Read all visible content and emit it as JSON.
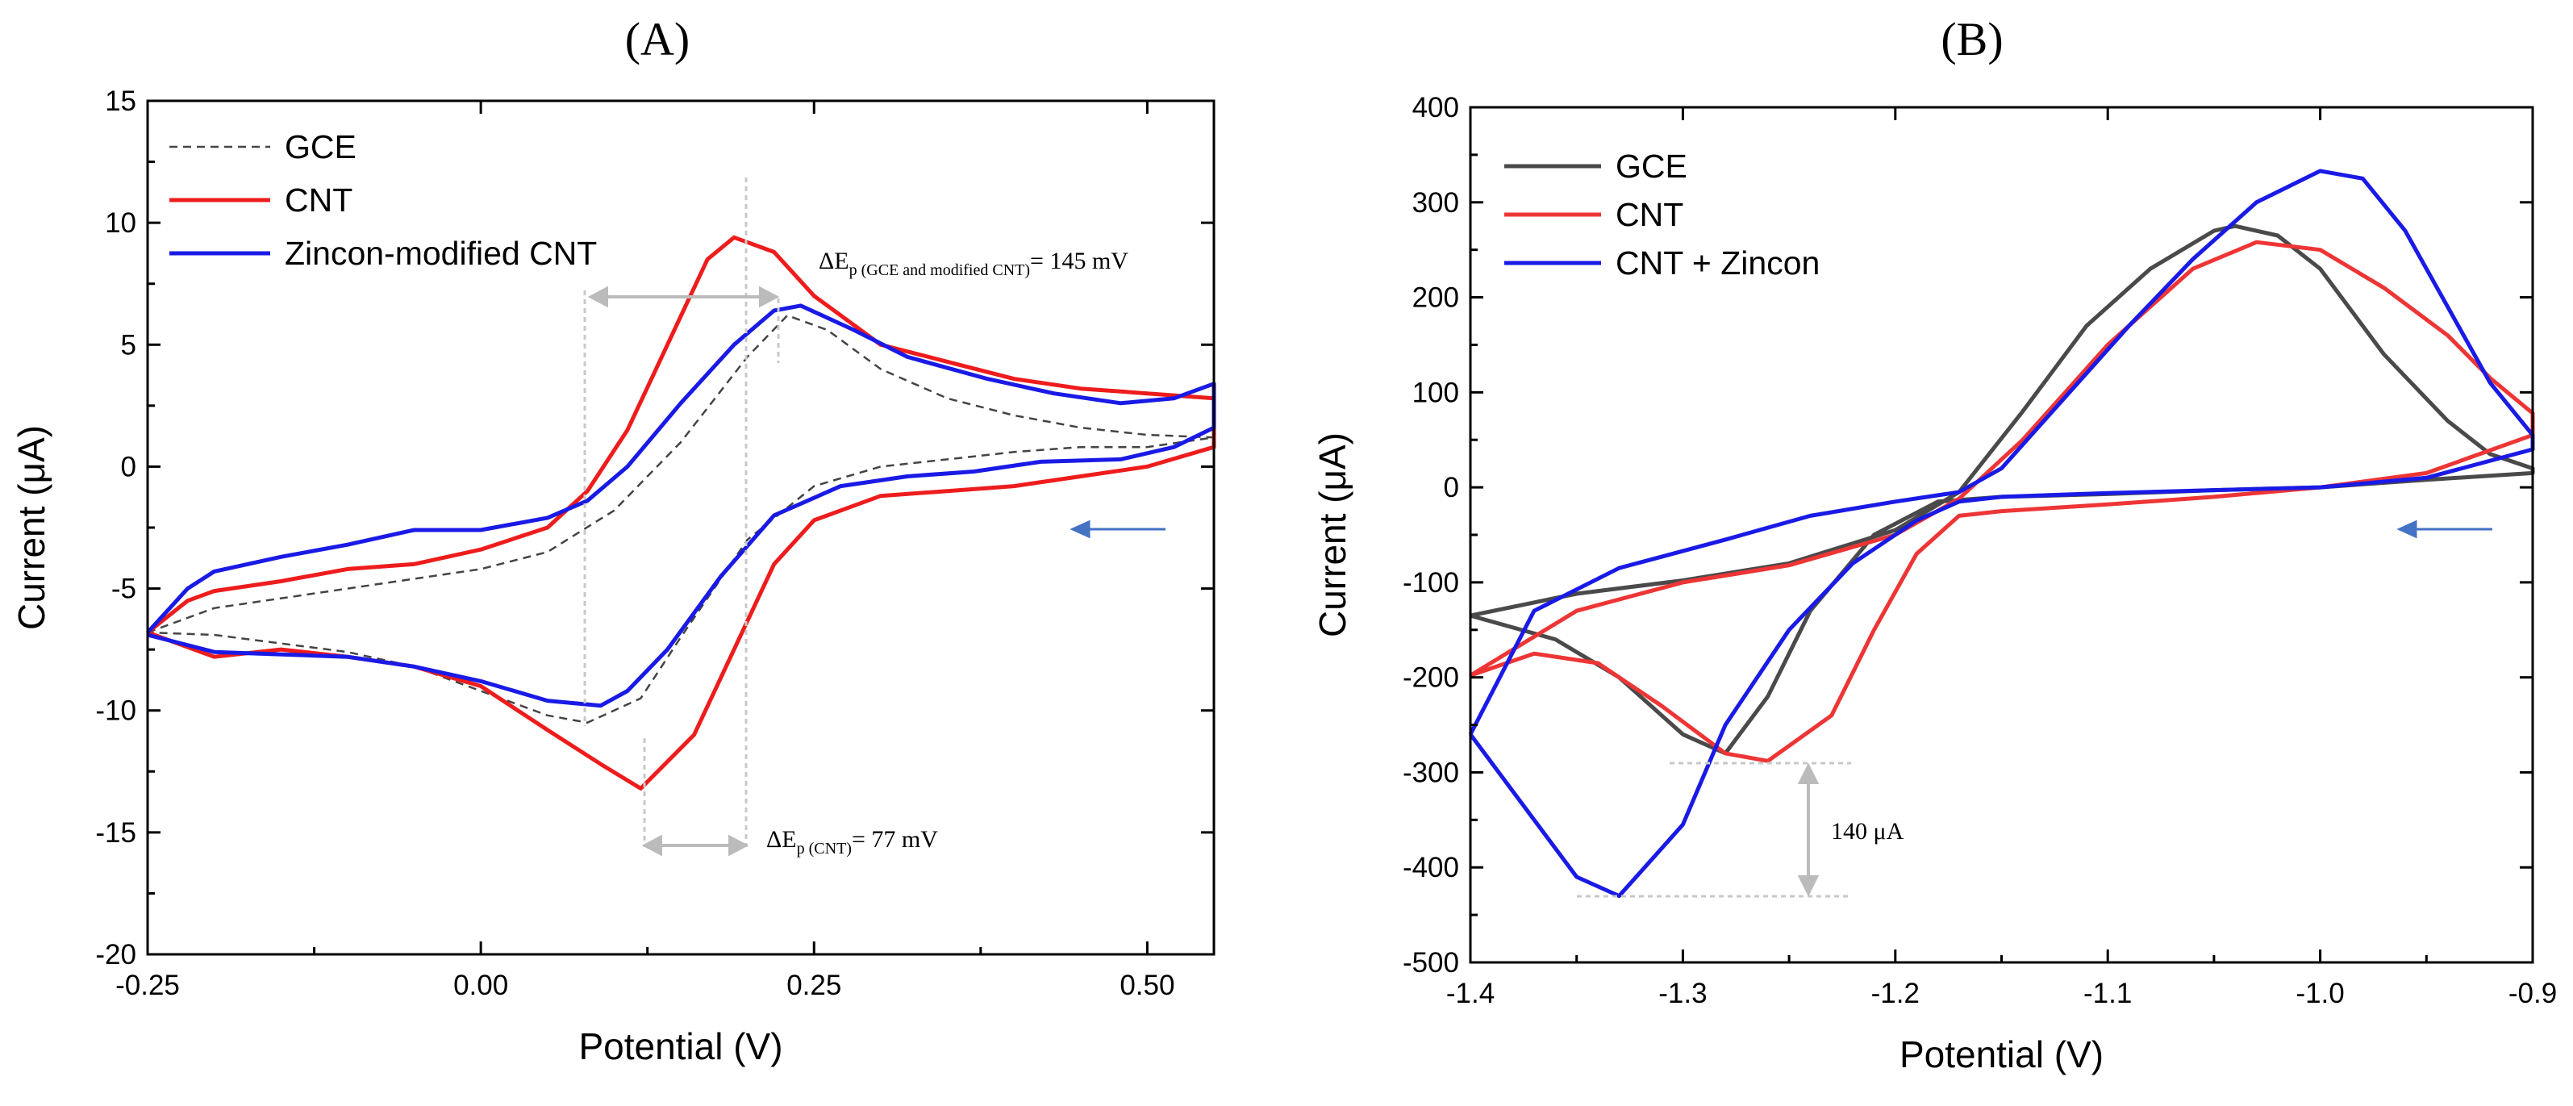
{
  "chart_data": [
    {
      "type": "line",
      "panel_label": "(A)",
      "xlabel": "Potential (V)",
      "ylabel": "Current (μA)",
      "xlim": [
        -0.25,
        0.55
      ],
      "ylim": [
        -20,
        15
      ],
      "xticks": [
        -0.25,
        0.0,
        0.25,
        0.5
      ],
      "xtick_labels": [
        "-0.25",
        "0.00",
        "0.25",
        "0.50"
      ],
      "yticks": [
        -20,
        -15,
        -10,
        -5,
        0,
        5,
        10,
        15
      ],
      "ytick_labels": [
        "-20",
        "-15",
        "-10",
        "-5",
        "0",
        "5",
        "10",
        "15"
      ],
      "legend_position": "top-left",
      "series": [
        {
          "name": "GCE",
          "color": "#444444",
          "style": "dashed",
          "points": [
            [
              -0.25,
              -6.8
            ],
            [
              -0.2,
              -5.8
            ],
            [
              -0.1,
              -5.0
            ],
            [
              0.0,
              -4.2
            ],
            [
              0.05,
              -3.5
            ],
            [
              0.1,
              -1.8
            ],
            [
              0.15,
              1.0
            ],
            [
              0.2,
              4.5
            ],
            [
              0.23,
              6.2
            ],
            [
              0.26,
              5.6
            ],
            [
              0.3,
              4.0
            ],
            [
              0.35,
              2.8
            ],
            [
              0.4,
              2.1
            ],
            [
              0.45,
              1.6
            ],
            [
              0.5,
              1.3
            ],
            [
              0.55,
              1.2
            ],
            [
              0.5,
              0.8
            ],
            [
              0.45,
              0.8
            ],
            [
              0.4,
              0.6
            ],
            [
              0.35,
              0.3
            ],
            [
              0.3,
              0.0
            ],
            [
              0.25,
              -0.8
            ],
            [
              0.2,
              -3.0
            ],
            [
              0.15,
              -7.0
            ],
            [
              0.12,
              -9.5
            ],
            [
              0.08,
              -10.5
            ],
            [
              0.05,
              -10.2
            ],
            [
              0.0,
              -9.2
            ],
            [
              -0.05,
              -8.2
            ],
            [
              -0.1,
              -7.6
            ],
            [
              -0.2,
              -6.9
            ],
            [
              -0.25,
              -6.8
            ]
          ]
        },
        {
          "name": "CNT",
          "color": "#ee1c1c",
          "style": "solid",
          "points": [
            [
              -0.25,
              -6.8
            ],
            [
              -0.22,
              -5.5
            ],
            [
              -0.2,
              -5.1
            ],
            [
              -0.15,
              -4.7
            ],
            [
              -0.1,
              -4.2
            ],
            [
              -0.05,
              -4.0
            ],
            [
              0.0,
              -3.4
            ],
            [
              0.05,
              -2.5
            ],
            [
              0.08,
              -1.0
            ],
            [
              0.11,
              1.5
            ],
            [
              0.14,
              5.0
            ],
            [
              0.17,
              8.5
            ],
            [
              0.19,
              9.4
            ],
            [
              0.22,
              8.8
            ],
            [
              0.25,
              7.0
            ],
            [
              0.3,
              5.0
            ],
            [
              0.35,
              4.3
            ],
            [
              0.4,
              3.6
            ],
            [
              0.45,
              3.2
            ],
            [
              0.5,
              3.0
            ],
            [
              0.55,
              2.8
            ],
            [
              0.55,
              0.8
            ],
            [
              0.5,
              0.0
            ],
            [
              0.45,
              -0.4
            ],
            [
              0.4,
              -0.8
            ],
            [
              0.35,
              -1.0
            ],
            [
              0.3,
              -1.2
            ],
            [
              0.25,
              -2.2
            ],
            [
              0.22,
              -4.0
            ],
            [
              0.19,
              -7.5
            ],
            [
              0.16,
              -11.0
            ],
            [
              0.12,
              -13.2
            ],
            [
              0.09,
              -12.2
            ],
            [
              0.05,
              -10.8
            ],
            [
              0.0,
              -9.0
            ],
            [
              -0.05,
              -8.2
            ],
            [
              -0.1,
              -7.8
            ],
            [
              -0.15,
              -7.5
            ],
            [
              -0.2,
              -7.8
            ],
            [
              -0.25,
              -6.8
            ]
          ]
        },
        {
          "name": "Zincon-modified CNT",
          "color": "#1a1ae6",
          "style": "solid",
          "points": [
            [
              -0.25,
              -6.8
            ],
            [
              -0.22,
              -5.0
            ],
            [
              -0.2,
              -4.3
            ],
            [
              -0.15,
              -3.7
            ],
            [
              -0.1,
              -3.2
            ],
            [
              -0.05,
              -2.6
            ],
            [
              0.0,
              -2.6
            ],
            [
              0.05,
              -2.1
            ],
            [
              0.08,
              -1.4
            ],
            [
              0.11,
              0.0
            ],
            [
              0.15,
              2.6
            ],
            [
              0.19,
              5.0
            ],
            [
              0.22,
              6.4
            ],
            [
              0.24,
              6.6
            ],
            [
              0.28,
              5.6
            ],
            [
              0.32,
              4.5
            ],
            [
              0.38,
              3.6
            ],
            [
              0.43,
              3.0
            ],
            [
              0.48,
              2.6
            ],
            [
              0.52,
              2.8
            ],
            [
              0.55,
              3.4
            ],
            [
              0.55,
              1.6
            ],
            [
              0.52,
              0.8
            ],
            [
              0.48,
              0.3
            ],
            [
              0.42,
              0.2
            ],
            [
              0.37,
              -0.2
            ],
            [
              0.32,
              -0.4
            ],
            [
              0.27,
              -0.8
            ],
            [
              0.22,
              -2.0
            ],
            [
              0.18,
              -4.5
            ],
            [
              0.14,
              -7.5
            ],
            [
              0.11,
              -9.2
            ],
            [
              0.09,
              -9.8
            ],
            [
              0.05,
              -9.6
            ],
            [
              0.0,
              -8.8
            ],
            [
              -0.05,
              -8.2
            ],
            [
              -0.1,
              -7.8
            ],
            [
              -0.2,
              -7.6
            ],
            [
              -0.25,
              -6.9
            ]
          ]
        }
      ],
      "annotations": {
        "delta_main": "ΔE",
        "delta_gce_sub": "p (GCE and modified CNT)",
        "delta_gce_value": "= 145 mV",
        "delta_cnt_sub": "p (CNT)",
        "delta_cnt_value": "= 77 mV"
      }
    },
    {
      "type": "line",
      "panel_label": "(B)",
      "xlabel": "Potential (V)",
      "ylabel": "Current (μA)",
      "xlim": [
        -1.4,
        -0.9
      ],
      "ylim": [
        -500,
        400
      ],
      "xticks": [
        -1.4,
        -1.3,
        -1.2,
        -1.1,
        -1.0,
        -0.9
      ],
      "xtick_labels": [
        "-1.4",
        "-1.3",
        "-1.2",
        "-1.1",
        "-1.0",
        "-0.9"
      ],
      "yticks": [
        -500,
        -400,
        -300,
        -200,
        -100,
        0,
        100,
        200,
        300,
        400
      ],
      "ytick_labels": [
        "-500",
        "-400",
        "-300",
        "-200",
        "-100",
        "0",
        "100",
        "200",
        "300",
        "400"
      ],
      "legend_position": "top-left",
      "series": [
        {
          "name": "GCE",
          "color": "#4a4a4a",
          "style": "solid",
          "points": [
            [
              -1.4,
              -135
            ],
            [
              -1.35,
              -112
            ],
            [
              -1.3,
              -98
            ],
            [
              -1.25,
              -80
            ],
            [
              -1.2,
              -45
            ],
            [
              -1.17,
              -5
            ],
            [
              -1.14,
              80
            ],
            [
              -1.11,
              170
            ],
            [
              -1.08,
              230
            ],
            [
              -1.05,
              270
            ],
            [
              -1.04,
              275
            ],
            [
              -1.02,
              265
            ],
            [
              -1.0,
              230
            ],
            [
              -0.97,
              140
            ],
            [
              -0.94,
              70
            ],
            [
              -0.92,
              35
            ],
            [
              -0.9,
              20
            ],
            [
              -0.9,
              15
            ],
            [
              -0.95,
              8
            ],
            [
              -1.0,
              0
            ],
            [
              -1.05,
              -3
            ],
            [
              -1.1,
              -7
            ],
            [
              -1.15,
              -10
            ],
            [
              -1.18,
              -15
            ],
            [
              -1.21,
              -50
            ],
            [
              -1.24,
              -130
            ],
            [
              -1.26,
              -220
            ],
            [
              -1.28,
              -280
            ],
            [
              -1.3,
              -260
            ],
            [
              -1.33,
              -200
            ],
            [
              -1.36,
              -160
            ],
            [
              -1.4,
              -135
            ]
          ]
        },
        {
          "name": "CNT",
          "color": "#ee3535",
          "style": "solid",
          "points": [
            [
              -1.4,
              -198
            ],
            [
              -1.35,
              -130
            ],
            [
              -1.3,
              -100
            ],
            [
              -1.25,
              -82
            ],
            [
              -1.2,
              -50
            ],
            [
              -1.17,
              -12
            ],
            [
              -1.14,
              50
            ],
            [
              -1.1,
              150
            ],
            [
              -1.06,
              230
            ],
            [
              -1.03,
              258
            ],
            [
              -1.0,
              250
            ],
            [
              -0.97,
              210
            ],
            [
              -0.94,
              160
            ],
            [
              -0.92,
              115
            ],
            [
              -0.9,
              78
            ],
            [
              -0.9,
              55
            ],
            [
              -0.95,
              15
            ],
            [
              -1.0,
              0
            ],
            [
              -1.05,
              -10
            ],
            [
              -1.1,
              -18
            ],
            [
              -1.15,
              -25
            ],
            [
              -1.17,
              -30
            ],
            [
              -1.19,
              -70
            ],
            [
              -1.21,
              -150
            ],
            [
              -1.23,
              -240
            ],
            [
              -1.26,
              -288
            ],
            [
              -1.28,
              -280
            ],
            [
              -1.31,
              -230
            ],
            [
              -1.34,
              -185
            ],
            [
              -1.37,
              -175
            ],
            [
              -1.4,
              -198
            ]
          ]
        },
        {
          "name": "CNT + Zincon",
          "color": "#1a1ae6",
          "style": "solid",
          "points": [
            [
              -1.4,
              -260
            ],
            [
              -1.37,
              -130
            ],
            [
              -1.33,
              -85
            ],
            [
              -1.28,
              -55
            ],
            [
              -1.24,
              -30
            ],
            [
              -1.2,
              -15
            ],
            [
              -1.17,
              -5
            ],
            [
              -1.15,
              20
            ],
            [
              -1.12,
              95
            ],
            [
              -1.09,
              170
            ],
            [
              -1.06,
              240
            ],
            [
              -1.03,
              300
            ],
            [
              -1.0,
              333
            ],
            [
              -0.98,
              325
            ],
            [
              -0.96,
              270
            ],
            [
              -0.94,
              190
            ],
            [
              -0.92,
              110
            ],
            [
              -0.9,
              55
            ],
            [
              -0.9,
              40
            ],
            [
              -0.95,
              10
            ],
            [
              -1.0,
              0
            ],
            [
              -1.05,
              -3
            ],
            [
              -1.1,
              -6
            ],
            [
              -1.15,
              -10
            ],
            [
              -1.17,
              -15
            ],
            [
              -1.19,
              -35
            ],
            [
              -1.22,
              -80
            ],
            [
              -1.25,
              -150
            ],
            [
              -1.28,
              -250
            ],
            [
              -1.3,
              -355
            ],
            [
              -1.33,
              -430
            ],
            [
              -1.35,
              -410
            ],
            [
              -1.38,
              -320
            ],
            [
              -1.4,
              -260
            ]
          ]
        }
      ],
      "annotations": {
        "delta_current": "140 μA"
      }
    }
  ]
}
